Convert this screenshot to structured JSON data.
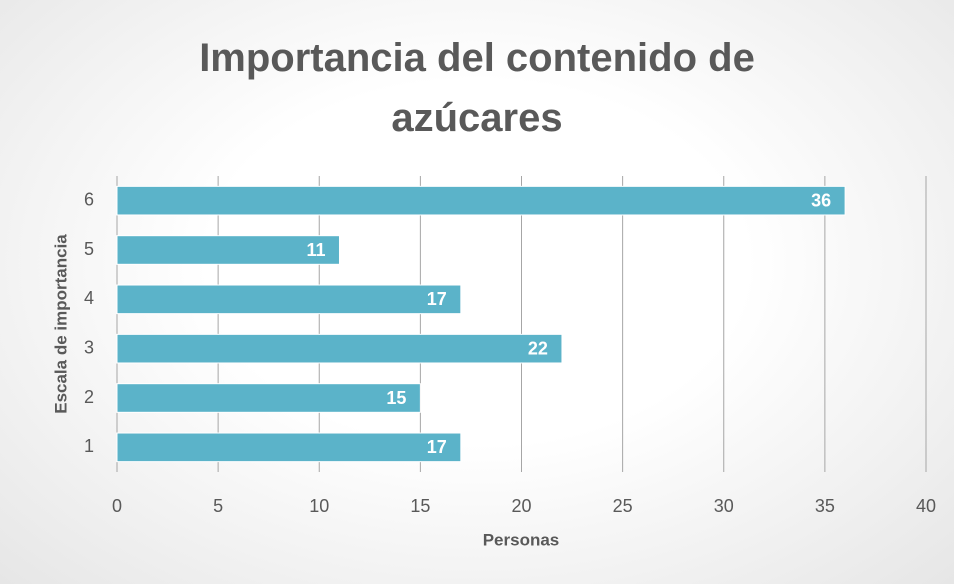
{
  "chart_data": {
    "type": "barh",
    "title": "Importancia del contenido de azúcares",
    "xlabel": "Personas",
    "ylabel": "Escala de importancia",
    "categories": [
      "1",
      "2",
      "3",
      "4",
      "5",
      "6"
    ],
    "values": [
      17,
      15,
      22,
      17,
      11,
      36
    ],
    "color": "#5bb3c9",
    "xlim": [
      0,
      40
    ],
    "xticks": [
      0,
      5,
      10,
      15,
      20,
      25,
      30,
      35,
      40
    ],
    "grid": true
  }
}
